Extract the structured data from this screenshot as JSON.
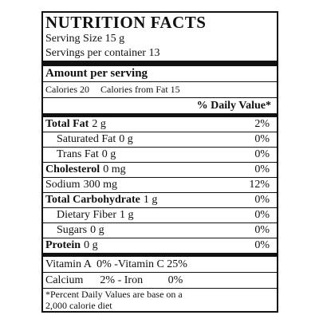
{
  "title": "NUTRITION FACTS",
  "serving_size": "Serving Size 15 g",
  "servings_per_container": "Servings per container 13",
  "amount_per_serving": "Amount per serving",
  "calories": "Calories 20",
  "calories_from_fat": "Calories from Fat 15",
  "daily_value_header": "% Daily Value*",
  "nutrients": [
    {
      "name": "Total Fat",
      "amount": "2 g",
      "dv": "2%"
    },
    {
      "name": "Saturated Fat",
      "amount": "0 g",
      "dv": "0%"
    },
    {
      "name": "Trans Fat",
      "amount": "0 g",
      "dv": "0%"
    },
    {
      "name": "Cholesterol",
      "amount": "0 mg",
      "dv": "0%"
    },
    {
      "name": "Sodium",
      "amount": "300 mg",
      "dv": "12%"
    },
    {
      "name": "Total Carbohydrate",
      "amount": "1 g",
      "dv": "0%"
    },
    {
      "name": "Dietary Fiber",
      "amount": "1 g",
      "dv": "0%"
    },
    {
      "name": "Sugars",
      "amount": "0 g",
      "dv": "0%"
    },
    {
      "name": "Protein",
      "amount": "0 g",
      "dv": "0%"
    }
  ],
  "vitamins": [
    "Vitamin A  0% -Vitamin C 25%",
    "Calcium      2% - Iron         0%"
  ],
  "footnote": [
    "*Percent Daily Values are base on a",
    "2,000 calorie diet"
  ]
}
